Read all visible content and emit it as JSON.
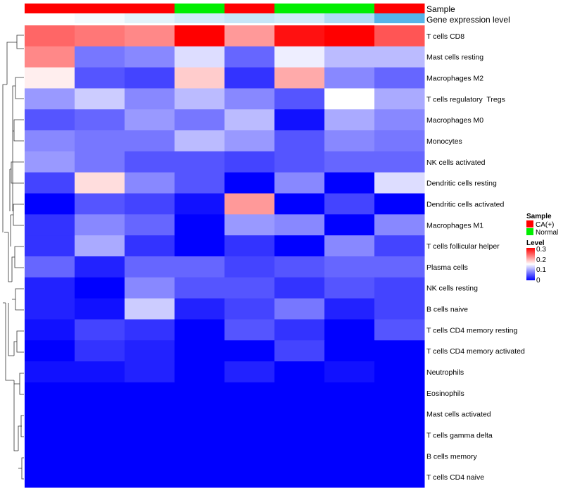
{
  "chart_data": {
    "type": "heatmap",
    "annotation_tracks": [
      {
        "name": "Sample",
        "values": [
          "CA(+)",
          "CA(+)",
          "CA(+)",
          "Normal",
          "CA(+)",
          "Normal",
          "Normal",
          "CA(+)"
        ]
      },
      {
        "name": "Gene expression level",
        "values": [
          0.0,
          0.02,
          0.05,
          0.08,
          0.1,
          0.08,
          0.14,
          0.3
        ]
      }
    ],
    "rows": [
      "T cells CD8",
      "Mast cells resting",
      "Macrophages M2",
      "T cells regulatory  Tregs",
      "Macrophages M0",
      "Monocytes",
      "NK cells activated",
      "Dendritic cells resting",
      "Dendritic cells activated",
      "Macrophages M1",
      "T cells follicular helper",
      "Plasma cells",
      "NK cells resting",
      "B cells naive",
      "T cells CD4 memory resting",
      "T cells CD4 memory activated",
      "Neutrophils",
      "Eosinophils",
      "Mast cells activated",
      "T cells gamma delta",
      "B cells memory",
      "T cells CD4 naive"
    ],
    "values": [
      [
        0.24,
        0.23,
        0.22,
        0.3,
        0.21,
        0.29,
        0.3,
        0.25
      ],
      [
        0.22,
        0.07,
        0.08,
        0.13,
        0.06,
        0.14,
        0.11,
        0.11
      ],
      [
        0.16,
        0.05,
        0.04,
        0.18,
        0.03,
        0.2,
        0.08,
        0.06
      ],
      [
        0.09,
        0.12,
        0.08,
        0.11,
        0.08,
        0.05,
        0.15,
        0.1
      ],
      [
        0.05,
        0.06,
        0.09,
        0.07,
        0.11,
        0.01,
        0.1,
        0.08
      ],
      [
        0.08,
        0.07,
        0.07,
        0.11,
        0.09,
        0.05,
        0.08,
        0.07
      ],
      [
        0.09,
        0.07,
        0.05,
        0.05,
        0.04,
        0.05,
        0.06,
        0.06
      ],
      [
        0.04,
        0.17,
        0.08,
        0.05,
        0.0,
        0.08,
        0.0,
        0.13
      ],
      [
        0.0,
        0.05,
        0.04,
        0.01,
        0.21,
        0.0,
        0.04,
        0.0
      ],
      [
        0.03,
        0.08,
        0.06,
        0.0,
        0.09,
        0.08,
        0.0,
        0.08
      ],
      [
        0.03,
        0.1,
        0.03,
        0.0,
        0.03,
        0.0,
        0.08,
        0.04
      ],
      [
        0.06,
        0.02,
        0.06,
        0.06,
        0.04,
        0.05,
        0.06,
        0.06
      ],
      [
        0.02,
        0.0,
        0.08,
        0.05,
        0.05,
        0.03,
        0.05,
        0.04
      ],
      [
        0.02,
        0.01,
        0.12,
        0.02,
        0.04,
        0.07,
        0.02,
        0.04
      ],
      [
        0.01,
        0.04,
        0.03,
        0.0,
        0.05,
        0.03,
        0.0,
        0.05
      ],
      [
        0.0,
        0.03,
        0.02,
        0.0,
        0.0,
        0.04,
        0.0,
        0.0
      ],
      [
        0.01,
        0.01,
        0.02,
        0.0,
        0.02,
        0.0,
        0.01,
        0.0
      ],
      [
        0.0,
        0.0,
        0.0,
        0.0,
        0.0,
        0.0,
        0.0,
        0.0
      ],
      [
        0.0,
        0.0,
        0.0,
        0.0,
        0.0,
        0.0,
        0.0,
        0.0
      ],
      [
        0.0,
        0.0,
        0.0,
        0.0,
        0.0,
        0.0,
        0.0,
        0.0
      ],
      [
        0.0,
        0.0,
        0.0,
        0.0,
        0.0,
        0.0,
        0.0,
        0.0
      ],
      [
        0.0,
        0.0,
        0.0,
        0.0,
        0.0,
        0.0,
        0.0,
        0.0
      ]
    ],
    "color_scale": {
      "min": 0,
      "max": 0.3,
      "low_color": "#0000ff",
      "mid_color": "#ffffff",
      "high_color": "#ff0000",
      "mid_value": 0.15
    },
    "expression_track_colors": {
      "low": "#ffffff",
      "high": "#56b4e9"
    },
    "legend": {
      "placement": "right",
      "sample": {
        "title": "Sample",
        "items": [
          {
            "label": "CA(+)",
            "color": "#ff0000"
          },
          {
            "label": "Normal",
            "color": "#00ee00"
          }
        ]
      },
      "level": {
        "title": "Level",
        "ticks": [
          "0.3",
          "0.2",
          "0.1",
          "0"
        ],
        "tick_values": [
          0.3,
          0.2,
          0.1,
          0
        ]
      }
    },
    "dendrogram": "row clustering tree on left side"
  }
}
